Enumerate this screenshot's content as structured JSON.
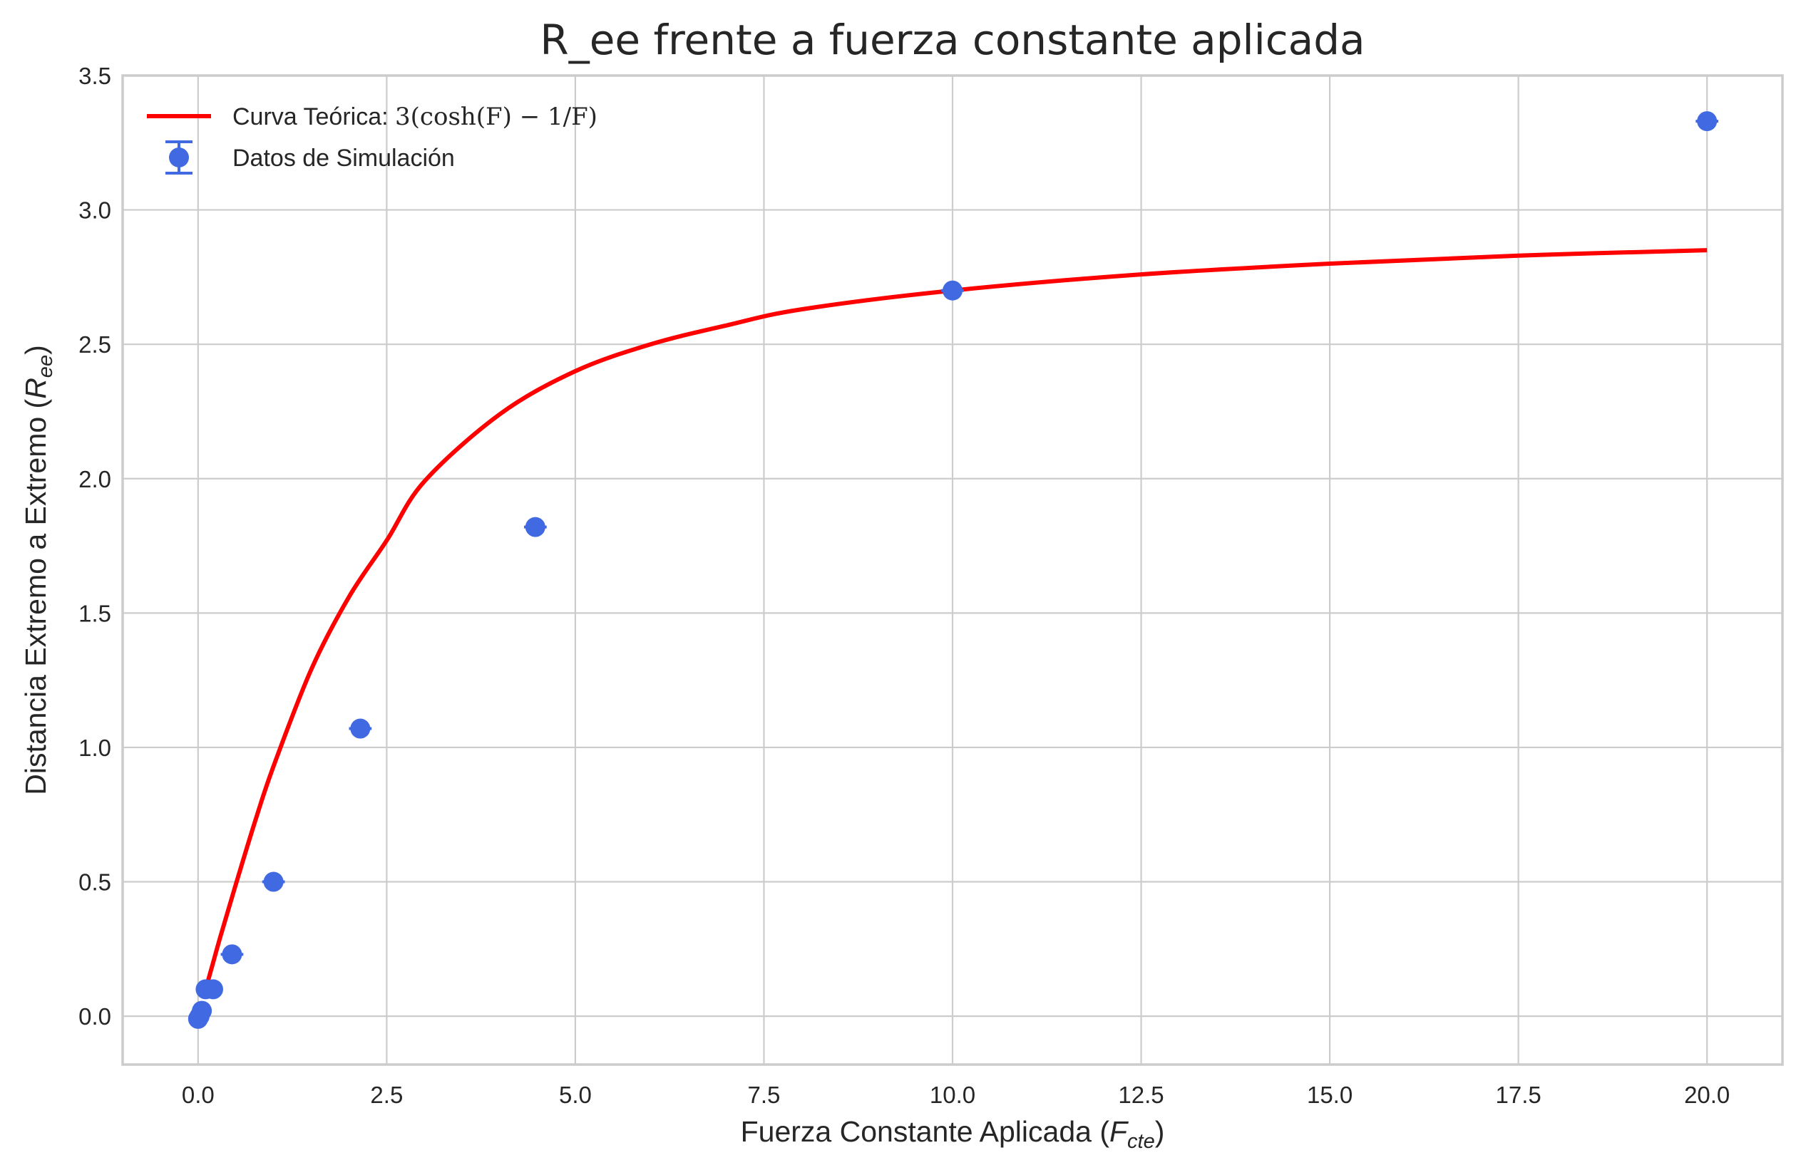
{
  "chart_data": {
    "type": "scatter",
    "title": "R_ee frente a fuerza constante aplicada",
    "xlabel": "Fuerza Constante Aplicada ($F_{cte}$)",
    "xlabel_main": "Fuerza Constante Aplicada (",
    "xlabel_sym": "F",
    "xlabel_sub": "cte",
    "xlabel_end": ")",
    "ylabel": "Distancia Extremo a Extremo ($R_{ee}$)",
    "ylabel_main": "Distancia Extremo a Extremo (",
    "ylabel_sym": "R",
    "ylabel_sub": "ee",
    "ylabel_end": ")",
    "xlim": [
      -1.0,
      21.0
    ],
    "ylim": [
      -0.18,
      3.5
    ],
    "xticks": [
      0.0,
      2.5,
      5.0,
      7.5,
      10.0,
      12.5,
      15.0,
      17.5,
      20.0
    ],
    "xtick_labels": [
      "0.0",
      "2.5",
      "5.0",
      "7.5",
      "10.0",
      "12.5",
      "15.0",
      "17.5",
      "20.0"
    ],
    "yticks": [
      0.0,
      0.5,
      1.0,
      1.5,
      2.0,
      2.5,
      3.0,
      3.5
    ],
    "ytick_labels": [
      "0.0",
      "0.5",
      "1.0",
      "1.5",
      "2.0",
      "2.5",
      "3.0",
      "3.5"
    ],
    "grid": true,
    "legend_position": "top-left",
    "series": [
      {
        "name": "Curva Teórica: 3(cosh(F) − 1/F)",
        "kind": "line",
        "color": "#ff0000",
        "x": [
          0.1,
          0.2,
          0.3,
          0.5,
          0.75,
          1.0,
          1.5,
          2.0,
          2.5,
          3.0,
          4.0,
          5.0,
          6.0,
          7.0,
          8.0,
          10.0,
          12.5,
          15.0,
          17.5,
          20.0
        ],
        "y": [
          0.1,
          0.2,
          0.3,
          0.49,
          0.72,
          0.93,
          1.29,
          1.56,
          1.77,
          1.99,
          2.24,
          2.4,
          2.5,
          2.57,
          2.63,
          2.7,
          2.76,
          2.8,
          2.83,
          2.85
        ]
      },
      {
        "name": "Datos de Simulación",
        "kind": "errorbar",
        "color": "#4169e1",
        "x": [
          0.0,
          0.02,
          0.05,
          0.1,
          0.2,
          0.45,
          1.0,
          2.15,
          4.47,
          10.0,
          20.0
        ],
        "y": [
          -0.01,
          0.0,
          0.02,
          0.1,
          0.1,
          0.23,
          0.5,
          1.07,
          1.82,
          2.7,
          3.33
        ],
        "xerr": [
          0.12,
          0.12,
          0.12,
          0.12,
          0.12,
          0.15,
          0.15,
          0.15,
          0.15,
          0.15,
          0.15
        ],
        "yerr": [
          0.0,
          0.0,
          0.0,
          0.0,
          0.0,
          0.0,
          0.0,
          0.0,
          0.0,
          0.0,
          0.0
        ]
      }
    ],
    "legend": {
      "line_label_prefix": "Curva Teórica: ",
      "line_label_math": "3(cosh(F) − 1/F)",
      "errorbar_label": "Datos de Simulación"
    }
  }
}
